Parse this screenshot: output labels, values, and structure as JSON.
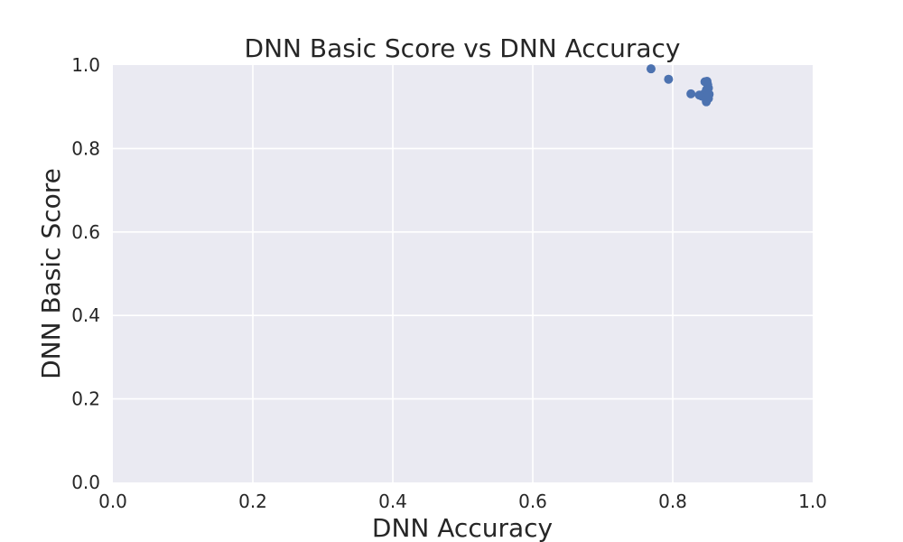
{
  "chart_data": {
    "type": "scatter",
    "title": "DNN Basic Score vs DNN Accuracy",
    "xlabel": "DNN Accuracy",
    "ylabel": "DNN Basic Score",
    "xlim": [
      0.0,
      1.0
    ],
    "ylim": [
      0.0,
      1.0
    ],
    "xticks": [
      "0.0",
      "0.2",
      "0.4",
      "0.6",
      "0.8",
      "1.0"
    ],
    "yticks": [
      "0.0",
      "0.2",
      "0.4",
      "0.6",
      "0.8",
      "1.0"
    ],
    "grid": true,
    "colors": {
      "background": "#eaeaf2",
      "grid": "#ffffff",
      "point": "#4c72b0"
    },
    "points": [
      {
        "x": 0.769,
        "y": 0.991
      },
      {
        "x": 0.794,
        "y": 0.966
      },
      {
        "x": 0.826,
        "y": 0.931
      },
      {
        "x": 0.838,
        "y": 0.928
      },
      {
        "x": 0.842,
        "y": 0.925
      },
      {
        "x": 0.844,
        "y": 0.93
      },
      {
        "x": 0.846,
        "y": 0.96
      },
      {
        "x": 0.848,
        "y": 0.918
      },
      {
        "x": 0.848,
        "y": 0.94
      },
      {
        "x": 0.848,
        "y": 0.912
      },
      {
        "x": 0.849,
        "y": 0.961
      },
      {
        "x": 0.85,
        "y": 0.953
      },
      {
        "x": 0.85,
        "y": 0.935
      },
      {
        "x": 0.85,
        "y": 0.925
      },
      {
        "x": 0.851,
        "y": 0.945
      },
      {
        "x": 0.851,
        "y": 0.92
      },
      {
        "x": 0.852,
        "y": 0.93
      }
    ]
  }
}
